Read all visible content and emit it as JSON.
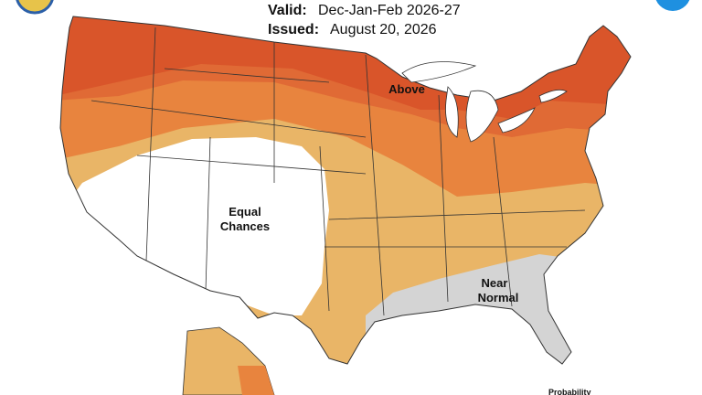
{
  "header": {
    "valid_label": "Valid:",
    "valid_value": "Dec-Jan-Feb 2026-27",
    "issued_label": "Issued:",
    "issued_value": "August 20, 2026"
  },
  "map": {
    "labels": {
      "above": "Above",
      "equal_1": "Equal",
      "equal_2": "Chances",
      "near_1": "Near",
      "near_2": "Normal"
    }
  },
  "legend": {
    "title": "Probability"
  }
}
